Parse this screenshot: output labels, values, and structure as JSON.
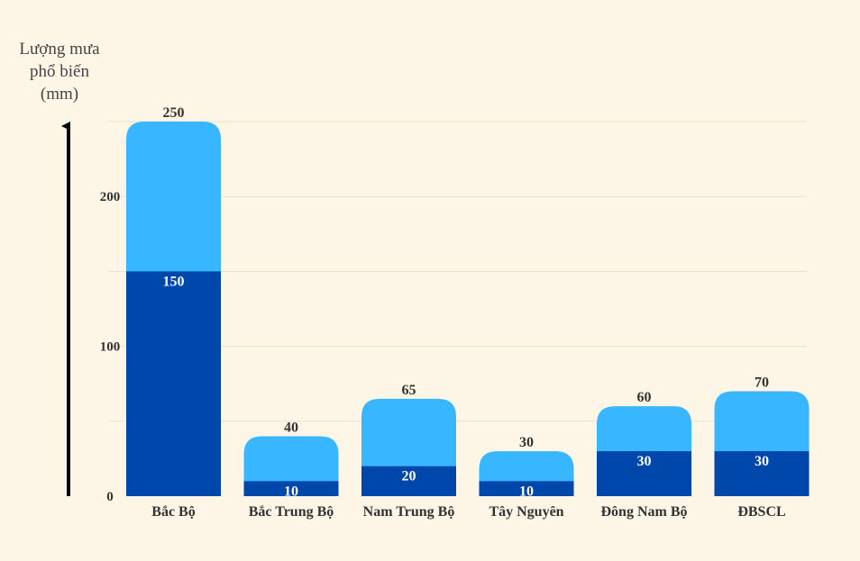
{
  "chart_data": {
    "type": "bar",
    "stacked": true,
    "ylabel_lines": [
      "Lượng mưa",
      "phổ biến",
      "(mm)"
    ],
    "xlabel": "",
    "categories": [
      "Bắc Bộ",
      "Bắc Trung Bộ",
      "Nam Trung Bộ",
      "Tây Nguyên",
      "Đông Nam Bộ",
      "ĐBSCL"
    ],
    "series": [
      {
        "values": [
          150,
          10,
          20,
          10,
          30,
          30
        ],
        "color": "#0047ab"
      },
      {
        "values": [
          100,
          30,
          45,
          20,
          30,
          40
        ],
        "color": "#38b6ff"
      }
    ],
    "bottom_labels": [
      "150",
      "10",
      "20",
      "10",
      "30",
      "30"
    ],
    "total_labels": [
      "250",
      "40",
      "65",
      "30",
      "60",
      "70"
    ],
    "yticks": [
      0,
      100,
      200
    ],
    "ytick_labels": [
      "0",
      "100",
      "200"
    ],
    "ylim": [
      0,
      250
    ],
    "grid": true,
    "background": "#fdf6e6",
    "gridline_color": "#e9e1d0",
    "text_color": "#333333"
  }
}
